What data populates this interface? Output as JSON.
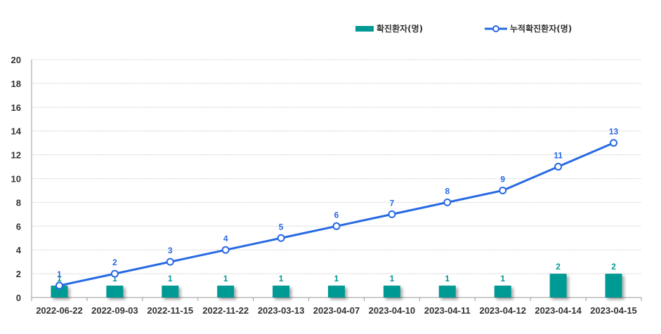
{
  "colors": {
    "bar": "#009A94",
    "line": "#2769E3",
    "grid": "#C8C8C8",
    "axis": "#999999"
  },
  "chart_data": {
    "type": "bar",
    "categories": [
      "2022-06-22",
      "2022-09-03",
      "2022-11-15",
      "2022-11-22",
      "2023-03-13",
      "2023-04-07",
      "2023-04-10",
      "2023-04-11",
      "2023-04-12",
      "2023-04-14",
      "2023-04-15"
    ],
    "series": [
      {
        "name": "확진환자(명)",
        "type": "bar",
        "values": [
          1,
          1,
          1,
          1,
          1,
          1,
          1,
          1,
          1,
          2,
          2
        ]
      },
      {
        "name": "누적확진환자(명)",
        "type": "line",
        "values": [
          1,
          2,
          3,
          4,
          5,
          6,
          7,
          8,
          9,
          11,
          13
        ]
      }
    ],
    "ylim": [
      0,
      20
    ],
    "yticks": [
      0,
      2,
      4,
      6,
      8,
      10,
      12,
      14,
      16,
      18,
      20
    ],
    "grid": true,
    "legend_position": "top-right"
  }
}
